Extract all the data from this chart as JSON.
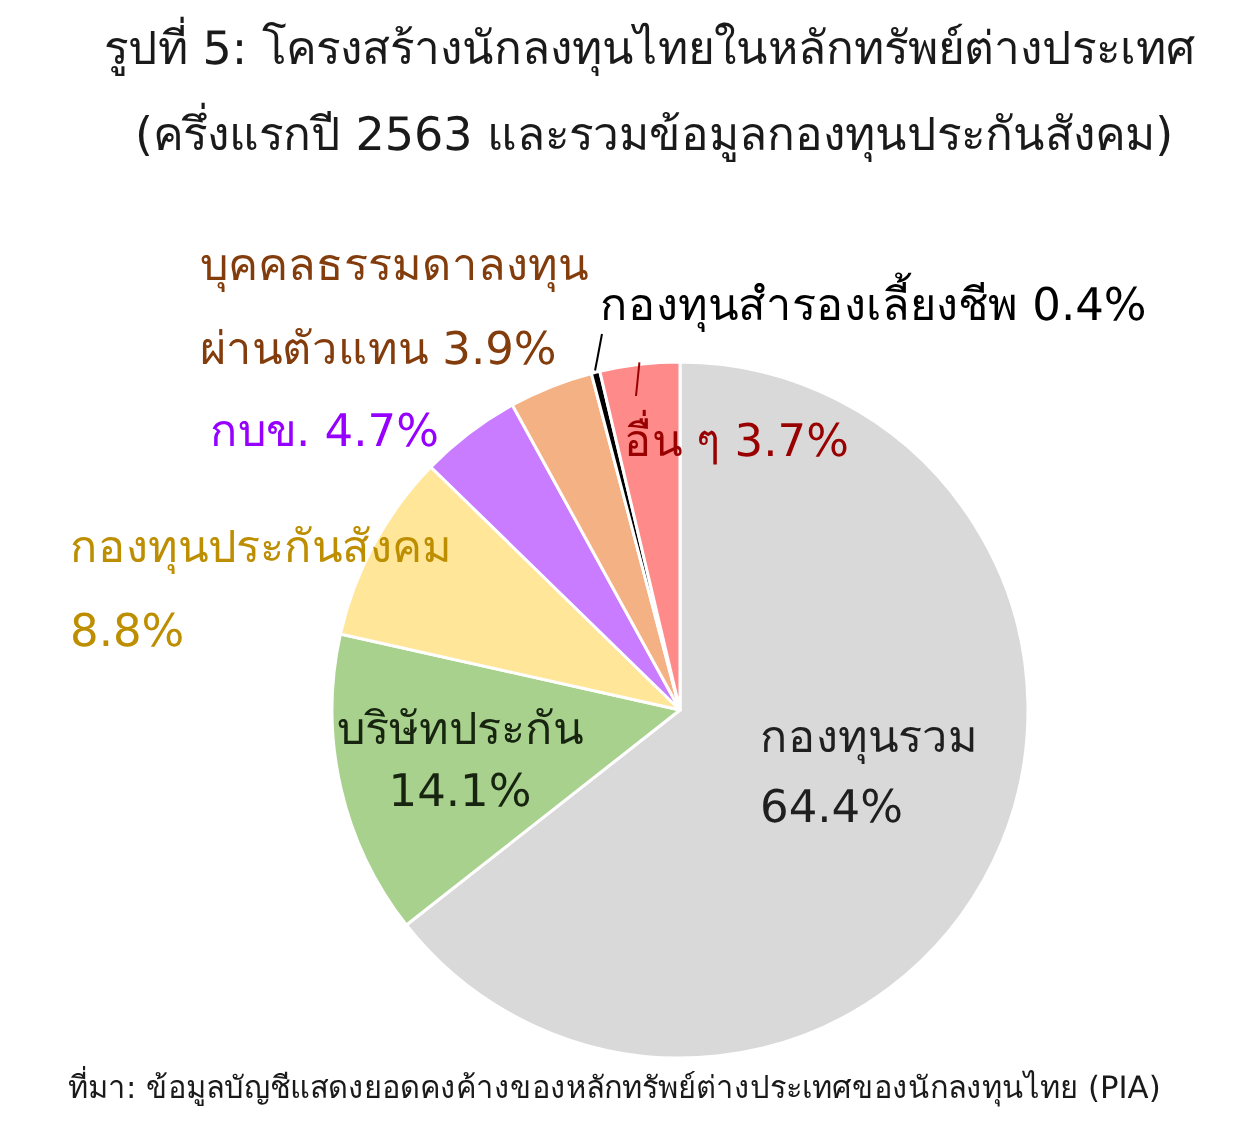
{
  "chart_data": {
    "type": "pie",
    "title": "รูปที่ 5: โครงสร้างนักลงทุนไทยในหลักทรัพย์ต่างประเทศ",
    "subtitle": "(ครึ่งแรกปี 2563 และรวมข้อมูลกองทุนประกันสังคม)",
    "categories": [
      "กองทุนรวม",
      "บริษัทประกัน",
      "กองทุนประกันสังคม",
      "กบข.",
      "บุคคลธรรมดาลงทุนผ่านตัวแทน",
      "กองทุนสำรองเลี้ยงชีพ",
      "อื่น ๆ"
    ],
    "values": [
      64.4,
      14.1,
      8.8,
      4.7,
      3.9,
      0.4,
      3.7
    ],
    "value_labels": [
      "64.4%",
      "14.1%",
      "8.8%",
      "4.7%",
      "3.9%",
      "0.4%",
      "3.7%"
    ],
    "colors": [
      "#d9d9d9",
      "#a9d18e",
      "#ffe699",
      "#c97cff",
      "#f4b183",
      "#000000",
      "#ff8a8a"
    ],
    "annotations": [
      "ที่มา: ข้อมูลบัญชีแสดงยอดคงค้างของหลักทรัพย์ต่างประเทศของนักลงทุนไทย (PIA)"
    ]
  }
}
